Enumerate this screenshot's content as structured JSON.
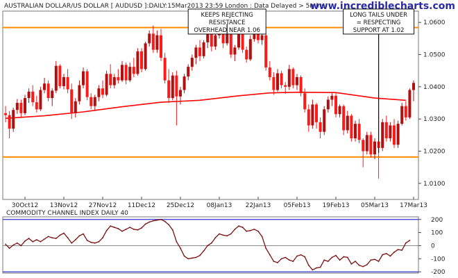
{
  "chart_data": [
    {
      "type": "candlestick",
      "title": "AUSTRALIAN DOLLAR/US DOLLAR [ AUDUSD ]:DAILY:15Mar2013 23:59 London : Data Delayed > 5mins",
      "watermark": "www.incrediblecharts.com",
      "ylim": [
        1.005,
        1.0635
      ],
      "yticks": [
        {
          "v": 1.06,
          "label": "1.0600"
        },
        {
          "v": 1.05,
          "label": "1.0500"
        },
        {
          "v": 1.04,
          "label": "1.0400"
        },
        {
          "v": 1.03,
          "label": "1.0300"
        },
        {
          "v": 1.02,
          "label": "1.0200"
        },
        {
          "v": 1.01,
          "label": "1.0100"
        }
      ],
      "xticks": [
        {
          "i": 5,
          "label": "30Oct12"
        },
        {
          "i": 15,
          "label": "13Nov12"
        },
        {
          "i": 25,
          "label": "27Nov12"
        },
        {
          "i": 35,
          "label": "11Dec12"
        },
        {
          "i": 45,
          "label": "25Dec12"
        },
        {
          "i": 55,
          "label": "08Jan13"
        },
        {
          "i": 65,
          "label": "22Jan13"
        },
        {
          "i": 75,
          "label": "05Feb13"
        },
        {
          "i": 85,
          "label": "19Feb13"
        },
        {
          "i": 95,
          "label": "05Mar13"
        },
        {
          "i": 105,
          "label": "17Mar13"
        }
      ],
      "levels": [
        {
          "name": "resistance",
          "value": 1.0584,
          "color": "#ff8c00"
        },
        {
          "name": "support",
          "value": 1.0182,
          "color": "#ff8c00"
        }
      ],
      "colors": {
        "up": "#b01010",
        "down": "#ff1a1a",
        "ma": "#ff0000",
        "line": "#000000"
      },
      "ma_name": "",
      "ma": [
        [
          0,
          1.0302
        ],
        [
          10,
          1.031
        ],
        [
          20,
          1.0322
        ],
        [
          30,
          1.0338
        ],
        [
          40,
          1.0352
        ],
        [
          50,
          1.0358
        ],
        [
          60,
          1.0372
        ],
        [
          68,
          1.0381
        ],
        [
          75,
          1.0383
        ],
        [
          85,
          1.0382
        ],
        [
          95,
          1.0365
        ],
        [
          103,
          1.0358
        ]
      ],
      "annotations": [
        {
          "lines": [
            "KEEPS REJECTING",
            "RESISTANCE",
            "OVERHEAD NEAR 1.06"
          ],
          "target_i": 57,
          "target_v": 1.0595
        },
        {
          "lines": [
            "LONG TAILS UNDER",
            "= RESPECTING",
            "SUPPORT AT 1.02"
          ],
          "target_i": 96,
          "target_v": 1.0195
        }
      ],
      "candles": [
        [
          1.0318,
          1.034,
          1.029,
          1.0312
        ],
        [
          1.0312,
          1.0325,
          1.024,
          1.027
        ],
        [
          1.027,
          1.0335,
          1.026,
          1.0328
        ],
        [
          1.0328,
          1.0362,
          1.0316,
          1.035
        ],
        [
          1.035,
          1.036,
          1.0305,
          1.0318
        ],
        [
          1.0318,
          1.0375,
          1.0312,
          1.0365
        ],
        [
          1.0365,
          1.0395,
          1.035,
          1.0385
        ],
        [
          1.0385,
          1.0405,
          1.034,
          1.0352
        ],
        [
          1.0352,
          1.0372,
          1.032,
          1.033
        ],
        [
          1.033,
          1.04,
          1.0325,
          1.039
        ],
        [
          1.039,
          1.0428,
          1.038,
          1.041
        ],
        [
          1.041,
          1.042,
          1.0355,
          1.0365
        ],
        [
          1.0365,
          1.0395,
          1.034,
          1.0388
        ],
        [
          1.0388,
          1.048,
          1.038,
          1.0465
        ],
        [
          1.0465,
          1.047,
          1.0395,
          1.0402
        ],
        [
          1.0402,
          1.044,
          1.0392,
          1.043
        ],
        [
          1.043,
          1.0455,
          1.038,
          1.0392
        ],
        [
          1.0392,
          1.041,
          1.03,
          1.0318
        ],
        [
          1.0318,
          1.0365,
          1.0305,
          1.0355
        ],
        [
          1.0355,
          1.042,
          1.0345,
          1.0405
        ],
        [
          1.0405,
          1.046,
          1.0395,
          1.0448
        ],
        [
          1.0448,
          1.0455,
          1.0358,
          1.0368
        ],
        [
          1.0368,
          1.038,
          1.033,
          1.034
        ],
        [
          1.034,
          1.0375,
          1.0325,
          1.0368
        ],
        [
          1.0368,
          1.0405,
          1.0355,
          1.0395
        ],
        [
          1.0395,
          1.042,
          1.0365,
          1.0375
        ],
        [
          1.0375,
          1.045,
          1.037,
          1.044
        ],
        [
          1.044,
          1.047,
          1.0395,
          1.0405
        ],
        [
          1.0405,
          1.044,
          1.0395,
          1.043
        ],
        [
          1.043,
          1.0455,
          1.041,
          1.042
        ],
        [
          1.042,
          1.048,
          1.0415,
          1.0468
        ],
        [
          1.0468,
          1.0475,
          1.0408,
          1.042
        ],
        [
          1.042,
          1.0475,
          1.0415,
          1.0462
        ],
        [
          1.0462,
          1.049,
          1.043,
          1.044
        ],
        [
          1.044,
          1.052,
          1.0435,
          1.051
        ],
        [
          1.051,
          1.052,
          1.0445,
          1.0455
        ],
        [
          1.0455,
          1.054,
          1.045,
          1.0535
        ],
        [
          1.0535,
          1.0575,
          1.0525,
          1.0565
        ],
        [
          1.0565,
          1.059,
          1.0505,
          1.0515
        ],
        [
          1.0515,
          1.0575,
          1.0505,
          1.056
        ],
        [
          1.056,
          1.058,
          1.048,
          1.049
        ],
        [
          1.049,
          1.0505,
          1.041,
          1.042
        ],
        [
          1.042,
          1.0455,
          1.035,
          1.0365
        ],
        [
          1.0365,
          1.0445,
          1.0358,
          1.0435
        ],
        [
          1.0435,
          1.045,
          1.028,
          1.037
        ],
        [
          1.037,
          1.04,
          1.0345,
          1.039
        ],
        [
          1.039,
          1.044,
          1.038,
          1.0432
        ],
        [
          1.0432,
          1.047,
          1.042,
          1.0462
        ],
        [
          1.0462,
          1.05,
          1.045,
          1.049
        ],
        [
          1.049,
          1.053,
          1.047,
          1.0522
        ],
        [
          1.0522,
          1.0545,
          1.048,
          1.0495
        ],
        [
          1.0495,
          1.0545,
          1.0488,
          1.0538
        ],
        [
          1.0538,
          1.0575,
          1.052,
          1.0565
        ],
        [
          1.0565,
          1.058,
          1.051,
          1.0525
        ],
        [
          1.0525,
          1.057,
          1.0515,
          1.056
        ],
        [
          1.056,
          1.061,
          1.055,
          1.059
        ],
        [
          1.059,
          1.0605,
          1.052,
          1.0535
        ],
        [
          1.0535,
          1.058,
          1.0528,
          1.0572
        ],
        [
          1.0572,
          1.059,
          1.049,
          1.05
        ],
        [
          1.05,
          1.053,
          1.048,
          1.0522
        ],
        [
          1.0522,
          1.058,
          1.0515,
          1.057
        ],
        [
          1.057,
          1.0585,
          1.0505,
          1.0515
        ],
        [
          1.0515,
          1.0525,
          1.0475,
          1.0485
        ],
        [
          1.0485,
          1.056,
          1.048,
          1.0548
        ],
        [
          1.0548,
          1.059,
          1.054,
          1.0578
        ],
        [
          1.0578,
          1.059,
          1.0535,
          1.0545
        ],
        [
          1.0545,
          1.0575,
          1.053,
          1.056
        ],
        [
          1.056,
          1.0565,
          1.045,
          1.046
        ],
        [
          1.046,
          1.048,
          1.042,
          1.043
        ],
        [
          1.043,
          1.0445,
          1.0375,
          1.039
        ],
        [
          1.039,
          1.0455,
          1.0385,
          1.0442
        ],
        [
          1.0442,
          1.045,
          1.0395,
          1.0405
        ],
        [
          1.0405,
          1.0415,
          1.0378,
          1.04
        ],
        [
          1.04,
          1.0468,
          1.039,
          1.0455
        ],
        [
          1.0455,
          1.046,
          1.0395,
          1.0405
        ],
        [
          1.0405,
          1.044,
          1.039,
          1.043
        ],
        [
          1.043,
          1.0435,
          1.037,
          1.038
        ],
        [
          1.038,
          1.0395,
          1.032,
          1.033
        ],
        [
          1.033,
          1.0345,
          1.026,
          1.028
        ],
        [
          1.028,
          1.036,
          1.027,
          1.0345
        ],
        [
          1.0345,
          1.035,
          1.027,
          1.029
        ],
        [
          1.029,
          1.0305,
          1.024,
          1.026
        ],
        [
          1.026,
          1.034,
          1.025,
          1.033
        ],
        [
          1.033,
          1.037,
          1.032,
          1.036
        ],
        [
          1.036,
          1.038,
          1.034,
          1.0372
        ],
        [
          1.0372,
          1.038,
          1.0305,
          1.0315
        ],
        [
          1.0315,
          1.0345,
          1.0305,
          1.034
        ],
        [
          1.034,
          1.0345,
          1.025,
          1.0265
        ],
        [
          1.0265,
          1.0325,
          1.0255,
          1.031
        ],
        [
          1.031,
          1.0315,
          1.023,
          1.024
        ],
        [
          1.024,
          1.0295,
          1.023,
          1.0285
        ],
        [
          1.0285,
          1.03,
          1.0225,
          1.0235
        ],
        [
          1.0235,
          1.024,
          1.015,
          1.02
        ],
        [
          1.02,
          1.026,
          1.019,
          1.025
        ],
        [
          1.025,
          1.026,
          1.018,
          1.019
        ],
        [
          1.019,
          1.024,
          1.0175,
          1.023
        ],
        [
          1.023,
          1.0585,
          1.0115,
          1.021
        ],
        [
          1.021,
          1.03,
          1.02,
          1.029
        ],
        [
          1.029,
          1.031,
          1.023,
          1.024
        ],
        [
          1.024,
          1.029,
          1.023,
          1.028
        ],
        [
          1.028,
          1.03,
          1.021,
          1.022
        ],
        [
          1.022,
          1.0295,
          1.021,
          1.0285
        ],
        [
          1.0285,
          1.035,
          1.028,
          1.034
        ],
        [
          1.034,
          1.0355,
          1.0295,
          1.0305
        ],
        [
          1.0305,
          1.0395,
          1.03,
          1.039
        ],
        [
          1.039,
          1.042,
          1.0355,
          1.0412
        ]
      ]
    },
    {
      "type": "line",
      "title": "COMMODITY CHANNEL INDEX DAILY 40",
      "ylim": [
        -210,
        220
      ],
      "yticks": [
        {
          "v": 200,
          "label": "200"
        },
        {
          "v": 100,
          "label": "100"
        },
        {
          "v": 0,
          "label": "0"
        },
        {
          "v": -100,
          "label": "-100"
        },
        {
          "v": -200,
          "label": "-200"
        }
      ],
      "ref_lines": [
        {
          "value": 200,
          "color": "#3333cc"
        },
        {
          "value": -200,
          "color": "#3333cc"
        },
        {
          "value": 0,
          "color": "#888888"
        }
      ],
      "colors": {
        "line": "#7a1010"
      },
      "values": [
        10,
        -20,
        5,
        20,
        0,
        35,
        55,
        30,
        45,
        30,
        50,
        70,
        60,
        55,
        80,
        95,
        60,
        20,
        45,
        75,
        90,
        40,
        25,
        20,
        30,
        60,
        115,
        150,
        140,
        130,
        110,
        125,
        140,
        125,
        120,
        135,
        165,
        180,
        190,
        195,
        200,
        185,
        160,
        120,
        30,
        -20,
        -80,
        -100,
        -95,
        -90,
        -75,
        -40,
        0,
        20,
        60,
        90,
        80,
        75,
        90,
        125,
        150,
        140,
        110,
        115,
        125,
        110,
        70,
        -20,
        -70,
        -120,
        -130,
        -100,
        -90,
        -110,
        -120,
        -80,
        -70,
        -85,
        -150,
        -185,
        -170,
        -165,
        -110,
        -120,
        -90,
        -75,
        -110,
        -85,
        -90,
        -140,
        -120,
        -150,
        -160,
        -145,
        -110,
        -105,
        -120,
        -70,
        -60,
        -80,
        -50,
        -30,
        -35,
        20,
        40
      ]
    }
  ]
}
